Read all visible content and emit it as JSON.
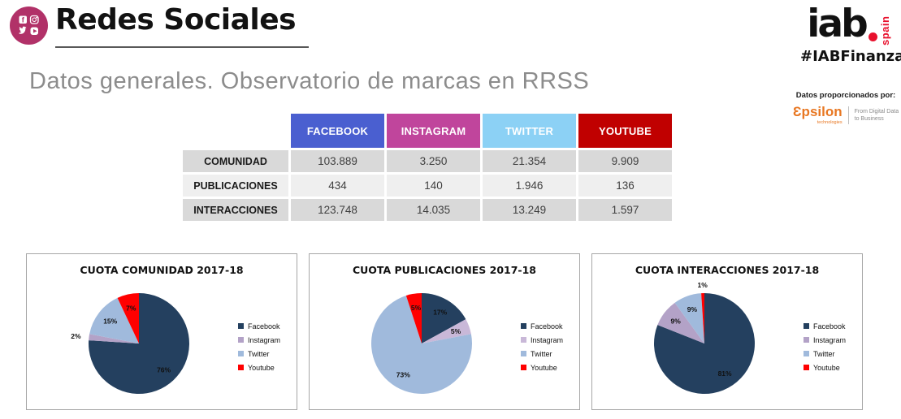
{
  "header": {
    "title": "Redes Sociales",
    "subtitle": "Datos generales. Observatorio de marcas en RRSS",
    "logo_color": "#B13168",
    "brand": {
      "name": "iab",
      "region": "spain",
      "hashtag": "#IABFinanzas",
      "accent_red": "#E8112D"
    },
    "provider": {
      "label": "Datos proporcionados por:",
      "vendor": "Ɛpsilon",
      "vendor_sub": "technologies",
      "vendor_color": "#E87722",
      "tagline_line1": "From Digital Data",
      "tagline_line2": "to Business"
    }
  },
  "table": {
    "columns": [
      {
        "label": "FACEBOOK",
        "color": "#4A5FD0"
      },
      {
        "label": "INSTAGRAM",
        "color": "#C0459C"
      },
      {
        "label": "TWITTER",
        "color": "#8CD1F5"
      },
      {
        "label": "YOUTUBE",
        "color": "#C00000"
      }
    ],
    "rows": [
      {
        "label": "COMUNIDAD",
        "values": [
          "103.889",
          "3.250",
          "21.354",
          "9.909"
        ]
      },
      {
        "label": "PUBLICACIONES",
        "values": [
          "434",
          "140",
          "1.946",
          "136"
        ]
      },
      {
        "label": "INTERACCIONES",
        "values": [
          "123.748",
          "14.035",
          "13.249",
          "1.597"
        ]
      }
    ]
  },
  "chart_data": [
    {
      "type": "pie",
      "title": "CUOTA COMUNIDAD 2017-18",
      "categories": [
        "Facebook",
        "Instagram",
        "Twitter",
        "Youtube"
      ],
      "values": [
        76,
        2,
        15,
        7
      ],
      "unit": "%",
      "colors": [
        "#24405F",
        "#B3A2C7",
        "#A0BADC",
        "#FF0000"
      ],
      "legend_position": "right"
    },
    {
      "type": "pie",
      "title": "CUOTA PUBLICACIONES 2017-18",
      "categories": [
        "Facebook",
        "Instagram",
        "Twitter",
        "Youtube"
      ],
      "values": [
        17,
        5,
        73,
        5
      ],
      "unit": "%",
      "colors": [
        "#24405F",
        "#C9B8D8",
        "#A0BADC",
        "#FF0000"
      ],
      "legend_position": "right"
    },
    {
      "type": "pie",
      "title": "CUOTA INTERACCIONES 2017-18",
      "categories": [
        "Facebook",
        "Instagram",
        "Twitter",
        "Youtube"
      ],
      "values": [
        81,
        9,
        9,
        1
      ],
      "unit": "%",
      "colors": [
        "#24405F",
        "#B3A2C7",
        "#A0BADC",
        "#FF0000"
      ],
      "legend_position": "right"
    }
  ]
}
